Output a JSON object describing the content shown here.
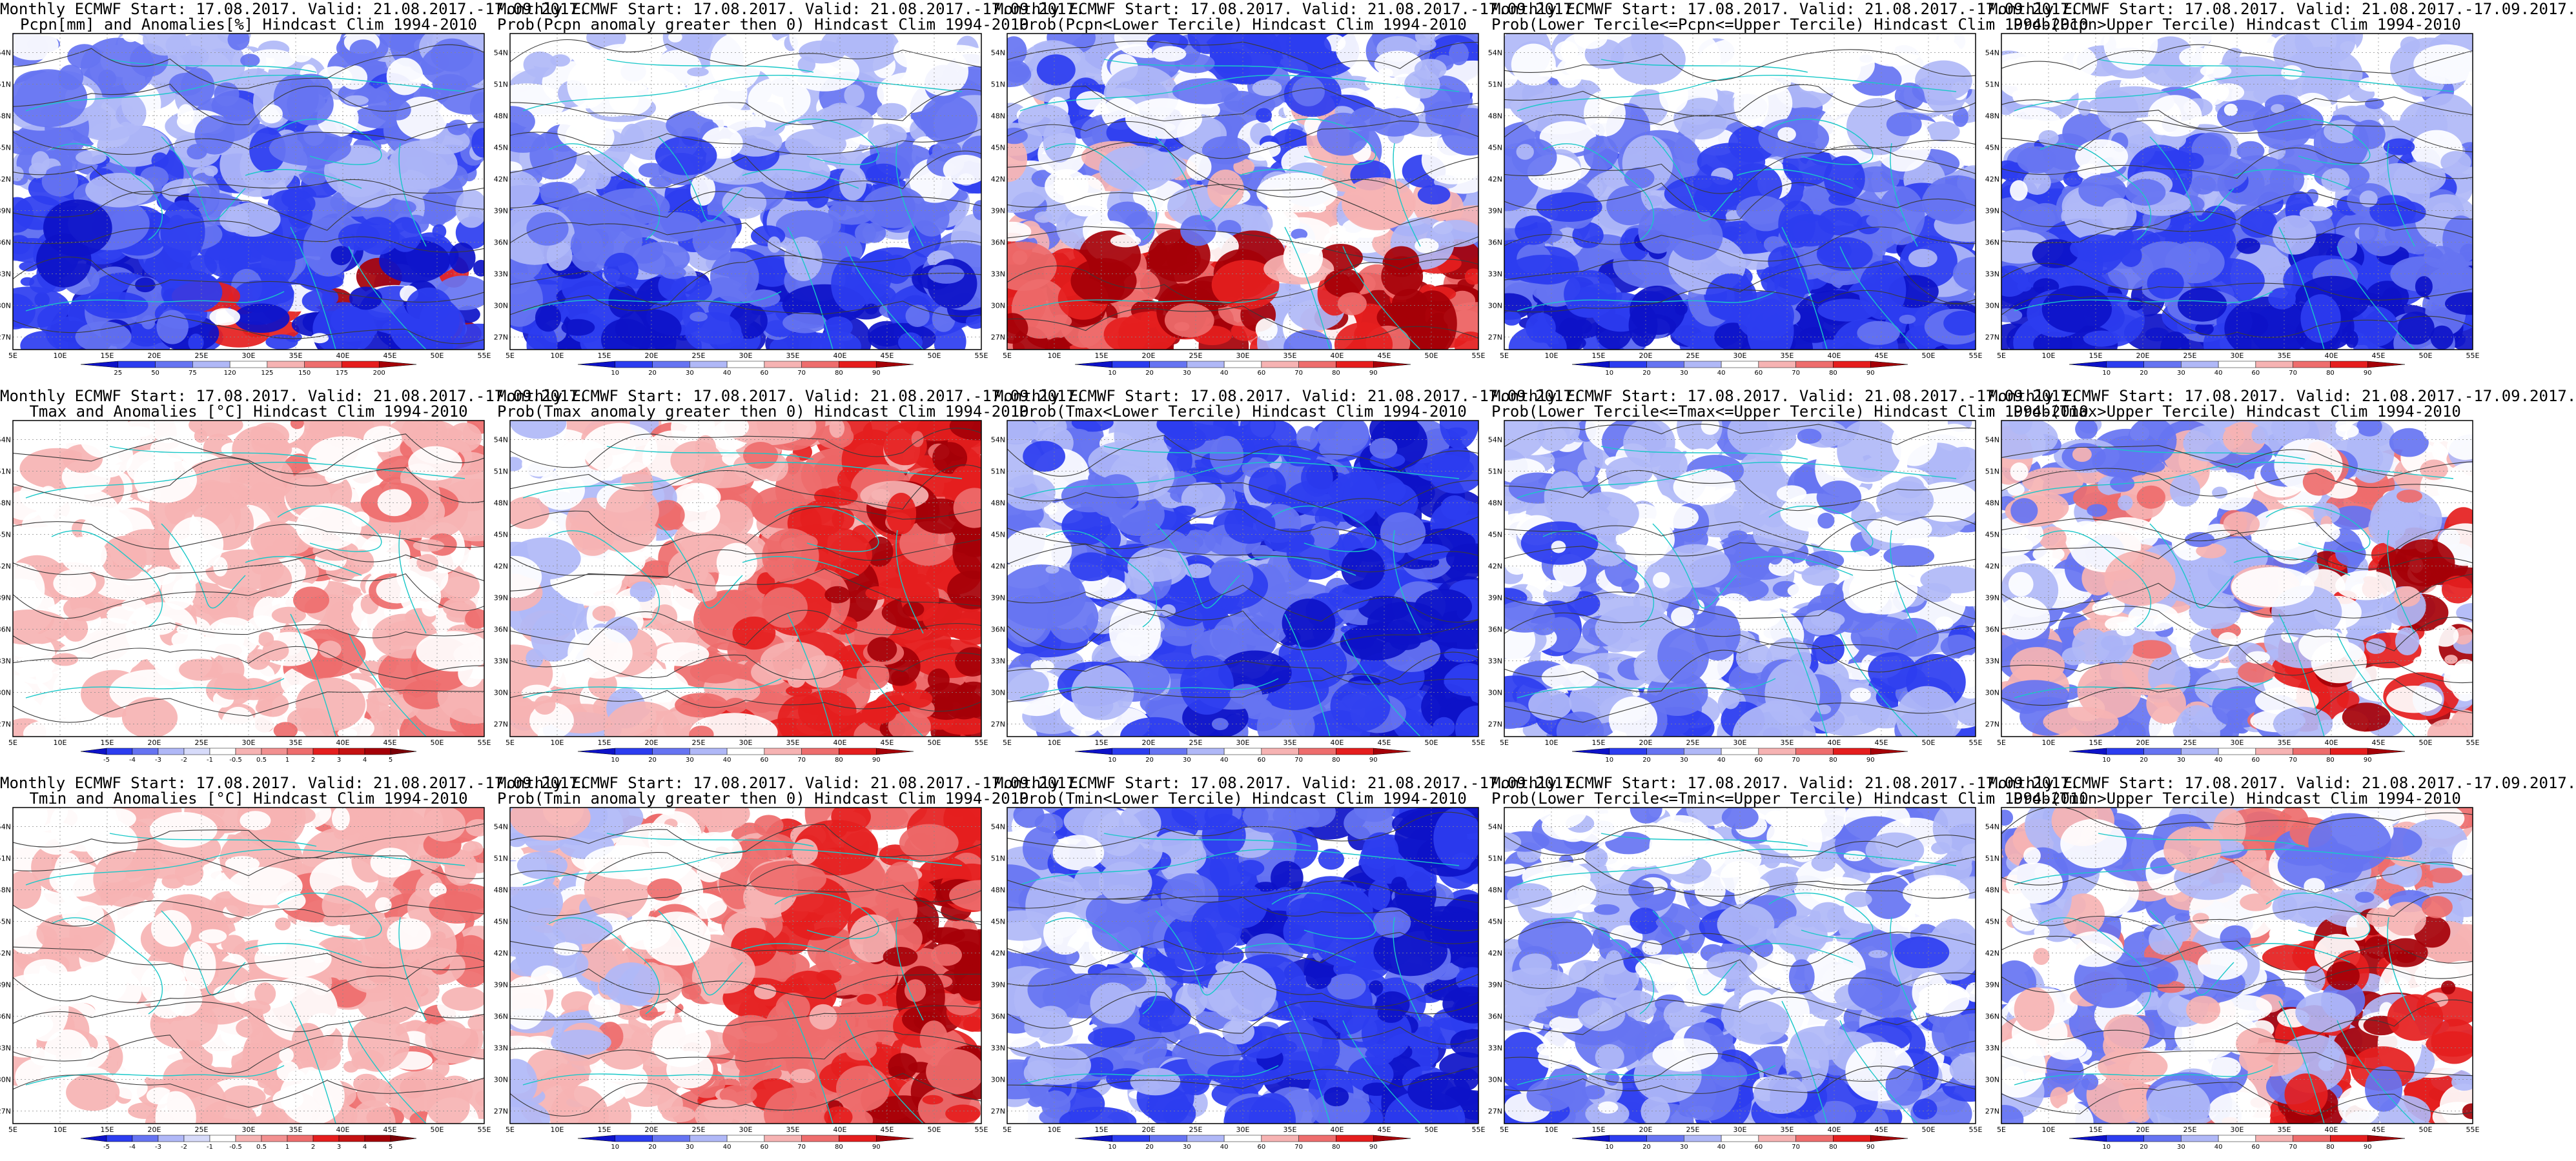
{
  "colors": {
    "deep_blue": "#0d12c8",
    "blue": "#2c3df0",
    "mid_blue": "#6674f2",
    "light_blue": "#b0b8f7",
    "white": "#ffffff",
    "light_red": "#f6b3b3",
    "mid_red": "#ee6d6d",
    "red": "#e51e1e",
    "dark_red": "#a50008",
    "coast": "#19c8c8",
    "contour": "#3a3a3a"
  },
  "axes": {
    "lat_labels": [
      "27N",
      "30N",
      "33N",
      "36N",
      "39N",
      "42N",
      "45N",
      "48N",
      "51N",
      "54N"
    ],
    "lon_labels": [
      "5E",
      "10E",
      "15E",
      "20E",
      "25E",
      "30E",
      "35E",
      "40E",
      "45E",
      "50E",
      "55E"
    ]
  },
  "colorbars": {
    "pcpn": [
      "25",
      "50",
      "75",
      "120",
      "125",
      "150",
      "175",
      "200"
    ],
    "temp": [
      "-5",
      "-4",
      "-3",
      "-2",
      "-1",
      "-0.5",
      "0.5",
      "1",
      "2",
      "3",
      "4",
      "5"
    ],
    "prob": [
      "10",
      "20",
      "30",
      "40",
      "60",
      "70",
      "80",
      "90"
    ]
  },
  "panels": [
    {
      "title1": "Monthly ECMWF Start: 17.08.2017. Valid: 21.08.2017.-17.09.2017.",
      "title2": "Pcpn[mm] and Anomalies[%] Hindcast Clim 1994-2010",
      "scheme": "mix_blue",
      "cbar": "pcpn"
    },
    {
      "title1": "Monthly ECMWF Start: 17.08.2017. Valid: 21.08.2017.-17.09.2017.",
      "title2": "Prob(Pcpn anomaly greater then 0) Hindcast Clim 1994-2010",
      "scheme": "blue",
      "cbar": "prob"
    },
    {
      "title1": "Monthly ECMWF Start: 17.08.2017. Valid: 21.08.2017.-17.09.2017.",
      "title2": "Prob(Pcpn<Lower Tercile) Hindcast Clim 1994-2010",
      "scheme": "red_south",
      "cbar": "prob"
    },
    {
      "title1": "Monthly ECMWF Start: 17.08.2017. Valid: 21.08.2017.-17.09.2017.",
      "title2": "Prob(Lower Tercile<=Pcpn<=Upper Tercile) Hindcast Clim 1994-2010",
      "scheme": "blue",
      "cbar": "prob"
    },
    {
      "title1": "Monthly ECMWF Start: 17.08.2017. Valid: 21.08.2017.-17.09.2017.",
      "title2": "Prob(Pcpn>Upper Tercile) Hindcast Clim 1994-2010",
      "scheme": "blue",
      "cbar": "prob"
    },
    {
      "title1": "Monthly ECMWF Start: 17.08.2017. Valid: 21.08.2017.-17.09.2017.",
      "title2": "Tmax and Anomalies [°C] Hindcast Clim 1994-2010",
      "scheme": "light_red",
      "cbar": "temp"
    },
    {
      "title1": "Monthly ECMWF Start: 17.08.2017. Valid: 21.08.2017.-17.09.2017.",
      "title2": "Prob(Tmax anomaly greater then 0) Hindcast Clim 1994-2010",
      "scheme": "red_east",
      "cbar": "prob"
    },
    {
      "title1": "Monthly ECMWF Start: 17.08.2017. Valid: 21.08.2017.-17.09.2017.",
      "title2": "Prob(Tmax<Lower Tercile) Hindcast Clim 1994-2010",
      "scheme": "deep_blue",
      "cbar": "prob"
    },
    {
      "title1": "Monthly ECMWF Start: 17.08.2017. Valid: 21.08.2017.-17.09.2017.",
      "title2": "Prob(Lower Tercile<=Tmax<=Upper Tercile) Hindcast Clim 1994-2010",
      "scheme": "blue_light",
      "cbar": "prob"
    },
    {
      "title1": "Monthly ECMWF Start: 17.08.2017. Valid: 21.08.2017.-17.09.2017.",
      "title2": "Prob(Tmax>Upper Tercile) Hindcast Clim 1994-2010",
      "scheme": "mixed",
      "cbar": "prob"
    },
    {
      "title1": "Monthly ECMWF Start: 17.08.2017. Valid: 21.08.2017.-17.09.2017.",
      "title2": "Tmin and Anomalies [°C] Hindcast Clim 1994-2010",
      "scheme": "light_red",
      "cbar": "temp"
    },
    {
      "title1": "Monthly ECMWF Start: 17.08.2017. Valid: 21.08.2017.-17.09.2017.",
      "title2": "Prob(Tmin anomaly greater then 0) Hindcast Clim 1994-2010",
      "scheme": "red_east",
      "cbar": "prob"
    },
    {
      "title1": "Monthly ECMWF Start: 17.08.2017. Valid: 21.08.2017.-17.09.2017.",
      "title2": "Prob(Tmin<Lower Tercile) Hindcast Clim 1994-2010",
      "scheme": "deep_blue",
      "cbar": "prob"
    },
    {
      "title1": "Monthly ECMWF Start: 17.08.2017. Valid: 21.08.2017.-17.09.2017.",
      "title2": "Prob(Lower Tercile<=Tmin<=Upper Tercile) Hindcast Clim 1994-2010",
      "scheme": "blue_light",
      "cbar": "prob"
    },
    {
      "title1": "Monthly ECMWF Start: 17.08.2017. Valid: 21.08.2017.-17.09.2017.",
      "title2": "Prob(Tmin>Upper Tercile) Hindcast Clim 1994-2010",
      "scheme": "mixed",
      "cbar": "prob"
    }
  ]
}
